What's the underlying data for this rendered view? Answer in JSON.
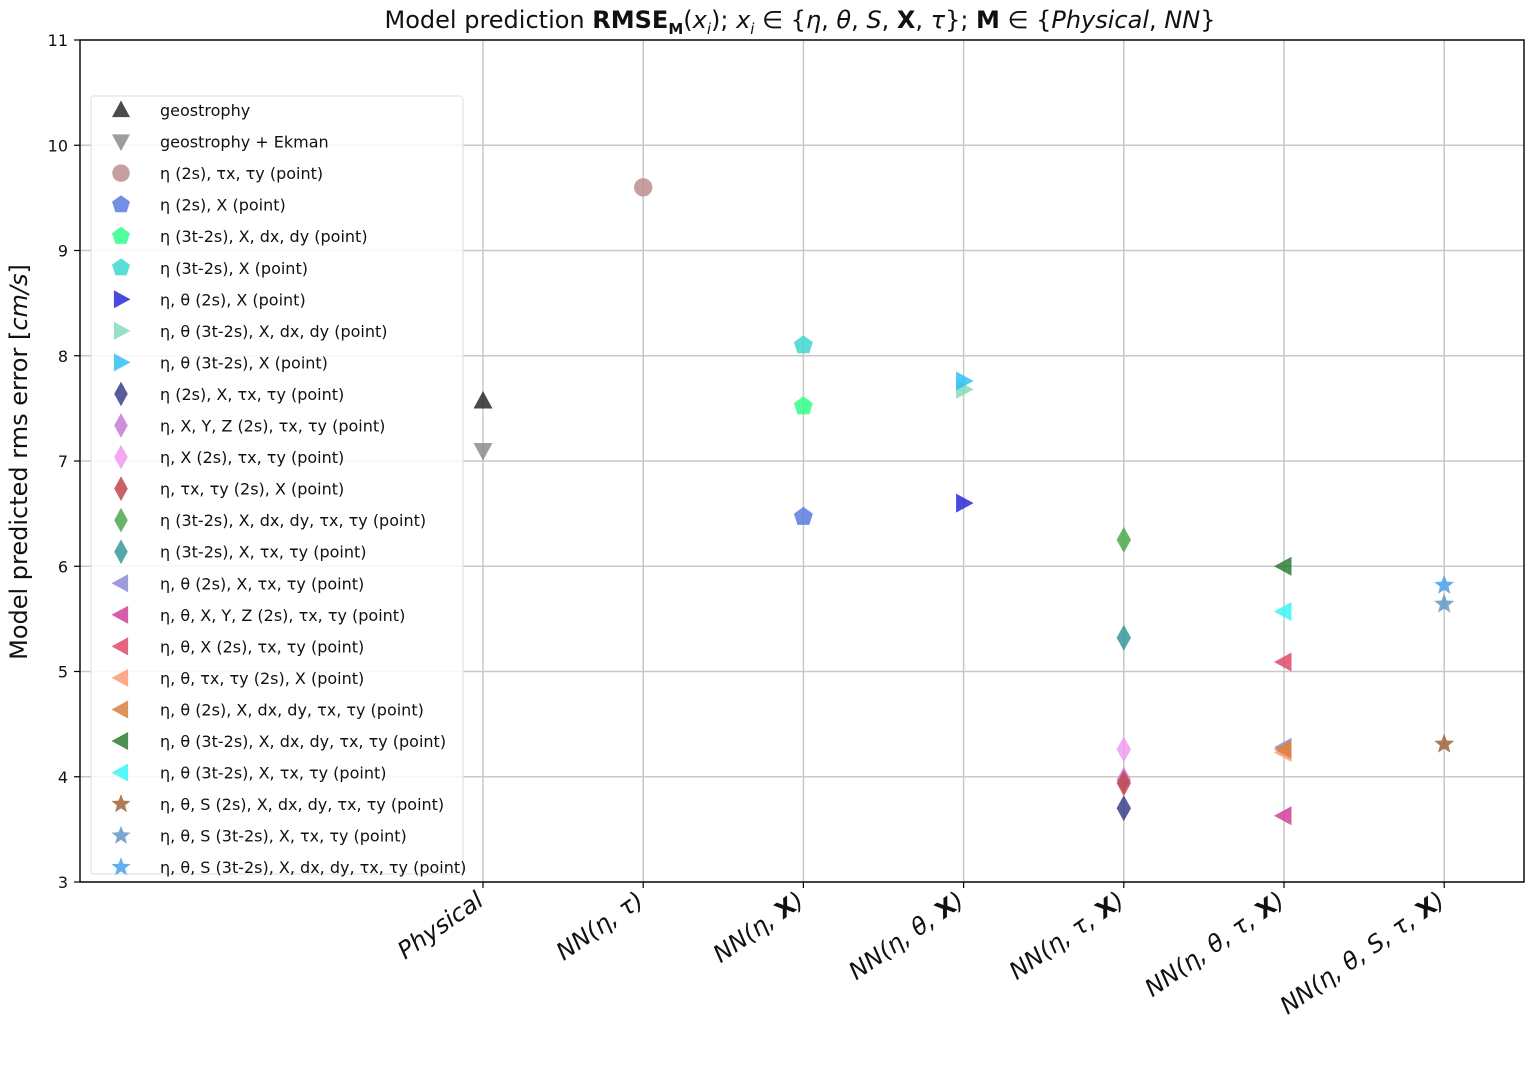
{
  "chart_data": {
    "type": "scatter",
    "title": "Model prediction RMSE_M(x_i); x_i ∈ {η, θ, S, X, τ}; M ∈ {Physical, NN}",
    "title_parts": {
      "a": "Model prediction ",
      "b": "RMSE",
      "c": "M",
      "d": "(",
      "e": "x",
      "f": "i",
      "g": "); ",
      "h": "x",
      "i": "i",
      "j": " ∈ {",
      "k": "η",
      "l": ", ",
      "m": "θ",
      "n": ", ",
      "o": "S",
      "p": ", ",
      "q": "X",
      "r": ", ",
      "s": "τ",
      "t": "}; ",
      "u": "M",
      "v": " ∈ {",
      "w": "Physical",
      "x": ", ",
      "y": "NN",
      "z": "}"
    },
    "xlabel": "",
    "ylabel": "Model predicted rms error [cm/s]",
    "ylabel_parts": {
      "a": "Model predicted rms error [",
      "b": "cm/s",
      "c": "]"
    },
    "ylim": [
      3,
      11
    ],
    "yticks": [
      "3",
      "4",
      "5",
      "6",
      "7",
      "8",
      "9",
      "10",
      "11"
    ],
    "grid": true,
    "legend_position": "upper-left",
    "categories": [
      {
        "pre": "Physical",
        "bold": "",
        "post": ""
      },
      {
        "pre": "NN(η, τ)",
        "bold": "",
        "post": ""
      },
      {
        "pre": "NN(η, ",
        "bold": "X",
        "post": ")"
      },
      {
        "pre": "NN(η, θ, ",
        "bold": "X",
        "post": ")"
      },
      {
        "pre": "NN(η, τ, ",
        "bold": "X",
        "post": ")"
      },
      {
        "pre": "NN(η, θ, τ, ",
        "bold": "X",
        "post": ")"
      },
      {
        "pre": "NN(η, θ, S, τ, ",
        "bold": "X",
        "post": ")"
      }
    ],
    "series": [
      {
        "name": "geostrophy",
        "marker": "triangle-up",
        "color": "#2b2b2b",
        "x": 0,
        "y": 7.57
      },
      {
        "name": "geostrophy + Ekman",
        "marker": "triangle-down",
        "color": "#8c8c8c",
        "x": 0,
        "y": 7.1
      },
      {
        "name": "η (2s), τx, τy (point)",
        "marker": "circle",
        "color": "#bc8f8f",
        "x": 1,
        "y": 9.6
      },
      {
        "name": "η (2s), X (point)",
        "marker": "pentagon",
        "color": "#5a7de0",
        "x": 2,
        "y": 6.47
      },
      {
        "name": "η (3t-2s), X, dx, dy (point)",
        "marker": "pentagon",
        "color": "#33ff88",
        "x": 2,
        "y": 7.52
      },
      {
        "name": "η (3t-2s), X (point)",
        "marker": "pentagon",
        "color": "#3fd8d0",
        "x": 2,
        "y": 8.1
      },
      {
        "name": "η, θ (2s), X (point)",
        "marker": "triangle-right",
        "color": "#2a2ad8",
        "x": 3,
        "y": 6.6
      },
      {
        "name": "η, θ (3t-2s), X, dx, dy (point)",
        "marker": "triangle-right",
        "color": "#86dcbd",
        "x": 3,
        "y": 7.68
      },
      {
        "name": "η, θ (3t-2s), X (point)",
        "marker": "triangle-right",
        "color": "#30c0f4",
        "x": 3,
        "y": 7.76
      },
      {
        "name": "η (2s), X, τx, τy (point)",
        "marker": "diamond",
        "color": "#3a3f88",
        "x": 4,
        "y": 3.7
      },
      {
        "name": "η, X, Y, Z (2s), τx, τy (point)",
        "marker": "diamond",
        "color": "#c77ad6",
        "x": 4,
        "y": 3.97
      },
      {
        "name": "η, X (2s), τx, τy (point)",
        "marker": "diamond",
        "color": "#f09bf0",
        "x": 4,
        "y": 4.26
      },
      {
        "name": "η, τx, τy (2s), X (point)",
        "marker": "diamond",
        "color": "#c0464e",
        "x": 4,
        "y": 3.94
      },
      {
        "name": "η (3t-2s), X, dx, dy, τx, τy (point)",
        "marker": "diamond",
        "color": "#4ea84e",
        "x": 4,
        "y": 6.25
      },
      {
        "name": "η (3t-2s), X, τx, τy (point)",
        "marker": "diamond",
        "color": "#359a9a",
        "x": 4,
        "y": 5.32
      },
      {
        "name": "η, θ (2s), X, τx, τy (point)",
        "marker": "triangle-left",
        "color": "#8c8cd8",
        "x": 5,
        "y": 4.28
      },
      {
        "name": "η, θ, X, Y, Z (2s), τx, τy (point)",
        "marker": "triangle-left",
        "color": "#d0409a",
        "x": 5,
        "y": 3.63
      },
      {
        "name": "η, θ, X (2s), τx, τy (point)",
        "marker": "triangle-left",
        "color": "#e04a6a",
        "x": 5,
        "y": 5.09
      },
      {
        "name": "η, θ, τx, τy (2s), X (point)",
        "marker": "triangle-left",
        "color": "#ff9a78",
        "x": 5,
        "y": 4.23
      },
      {
        "name": "η, θ (2s), X, dx, dy, τx, τy (point)",
        "marker": "triangle-left",
        "color": "#d88040",
        "x": 5,
        "y": 4.26
      },
      {
        "name": "η, θ (3t-2s), X, dx, dy, τx, τy (point)",
        "marker": "triangle-left",
        "color": "#2e7d32",
        "x": 5,
        "y": 6.0
      },
      {
        "name": "η, θ (3t-2s), X, τx, τy (point)",
        "marker": "triangle-left",
        "color": "#3cf4f4",
        "x": 5,
        "y": 5.57
      },
      {
        "name": "η, θ, S (2s), X, dx, dy, τx, τy (point)",
        "marker": "star",
        "color": "#a0643c",
        "x": 6,
        "y": 4.31
      },
      {
        "name": "η, θ, S (3t-2s), X, τx, τy (point)",
        "marker": "star",
        "color": "#6496c8",
        "x": 6,
        "y": 5.64
      },
      {
        "name": "η, θ, S (3t-2s), X, dx, dy, τx, τy (point)",
        "marker": "star",
        "color": "#4aa0f0",
        "x": 6,
        "y": 5.82
      }
    ]
  }
}
